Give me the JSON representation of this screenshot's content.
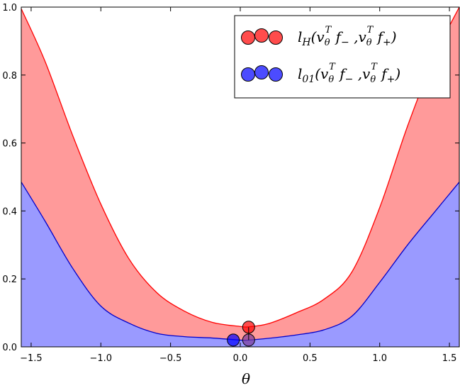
{
  "chart_data": {
    "type": "area",
    "xlabel": "θ",
    "ylabel": "",
    "xlim": [
      -1.5708,
      1.5708
    ],
    "ylim": [
      0.0,
      1.0
    ],
    "grid": false,
    "legend_position": "top-right",
    "x_ticks": [
      -1.5,
      -1.0,
      -0.5,
      0.0,
      0.5,
      1.0,
      1.5
    ],
    "x_tick_labels": [
      "−1.5",
      "−1.0",
      "−0.5",
      "0.0",
      "0.5",
      "1.0",
      "1.5"
    ],
    "y_ticks": [
      0.0,
      0.2,
      0.4,
      0.6,
      0.8,
      1.0
    ],
    "y_tick_labels": [
      "0.0",
      "0.2",
      "0.4",
      "0.6",
      "0.8",
      "1.0"
    ],
    "x": [
      -1.5708,
      -1.4,
      -1.2,
      -1.0,
      -0.8,
      -0.6,
      -0.4,
      -0.2,
      0.0,
      0.06,
      0.2,
      0.4,
      0.6,
      0.8,
      1.0,
      1.2,
      1.4,
      1.5708
    ],
    "series": [
      {
        "name": "l_H(v_θ^T f_−, v_θ^T f_+)",
        "color": "#ff0000",
        "fill_color": "#ff9a9a",
        "values": [
          0.995,
          0.84,
          0.62,
          0.42,
          0.26,
          0.16,
          0.105,
          0.072,
          0.06,
          0.059,
          0.068,
          0.1,
          0.14,
          0.22,
          0.41,
          0.65,
          0.86,
          1.0
        ]
      },
      {
        "name": "l_01(v_θ^T f_−, v_θ^T f_+)",
        "color": "#0000cc",
        "fill_color": "#9a9aff",
        "values": [
          0.485,
          0.37,
          0.23,
          0.12,
          0.07,
          0.04,
          0.03,
          0.026,
          0.02,
          0.02,
          0.025,
          0.035,
          0.05,
          0.09,
          0.19,
          0.3,
          0.4,
          0.485
        ]
      }
    ],
    "markers": [
      {
        "series": "l_H",
        "x": 0.06,
        "y": 0.058,
        "color": "#ff0000"
      },
      {
        "series": "l_01",
        "x": -0.05,
        "y": 0.02,
        "color": "#0000ff"
      },
      {
        "series": "l_01",
        "x": 0.06,
        "y": 0.02,
        "color": "#7a3a9a"
      }
    ],
    "legend": [
      {
        "label_main": "l",
        "label_sub": "H",
        "label_args": "(v",
        "label_sub2": "θ",
        "label_sup2": "T",
        "label_f1": " f",
        "label_f1_sub": "−",
        "label_comma": " ,v",
        "label_sub3": "θ",
        "label_sup3": "T",
        "label_f2": " f",
        "label_f2_sub": "+",
        "label_close": ")",
        "color": "#ff0000"
      },
      {
        "label_main": "l",
        "label_sub": "01",
        "label_args": "(v",
        "label_sub2": "θ",
        "label_sup2": "T",
        "label_f1": " f",
        "label_f1_sub": "−",
        "label_comma": " ,v",
        "label_sub3": "θ",
        "label_sup3": "T",
        "label_f2": " f",
        "label_f2_sub": "+",
        "label_close": ")",
        "color": "#0000ff"
      }
    ]
  }
}
